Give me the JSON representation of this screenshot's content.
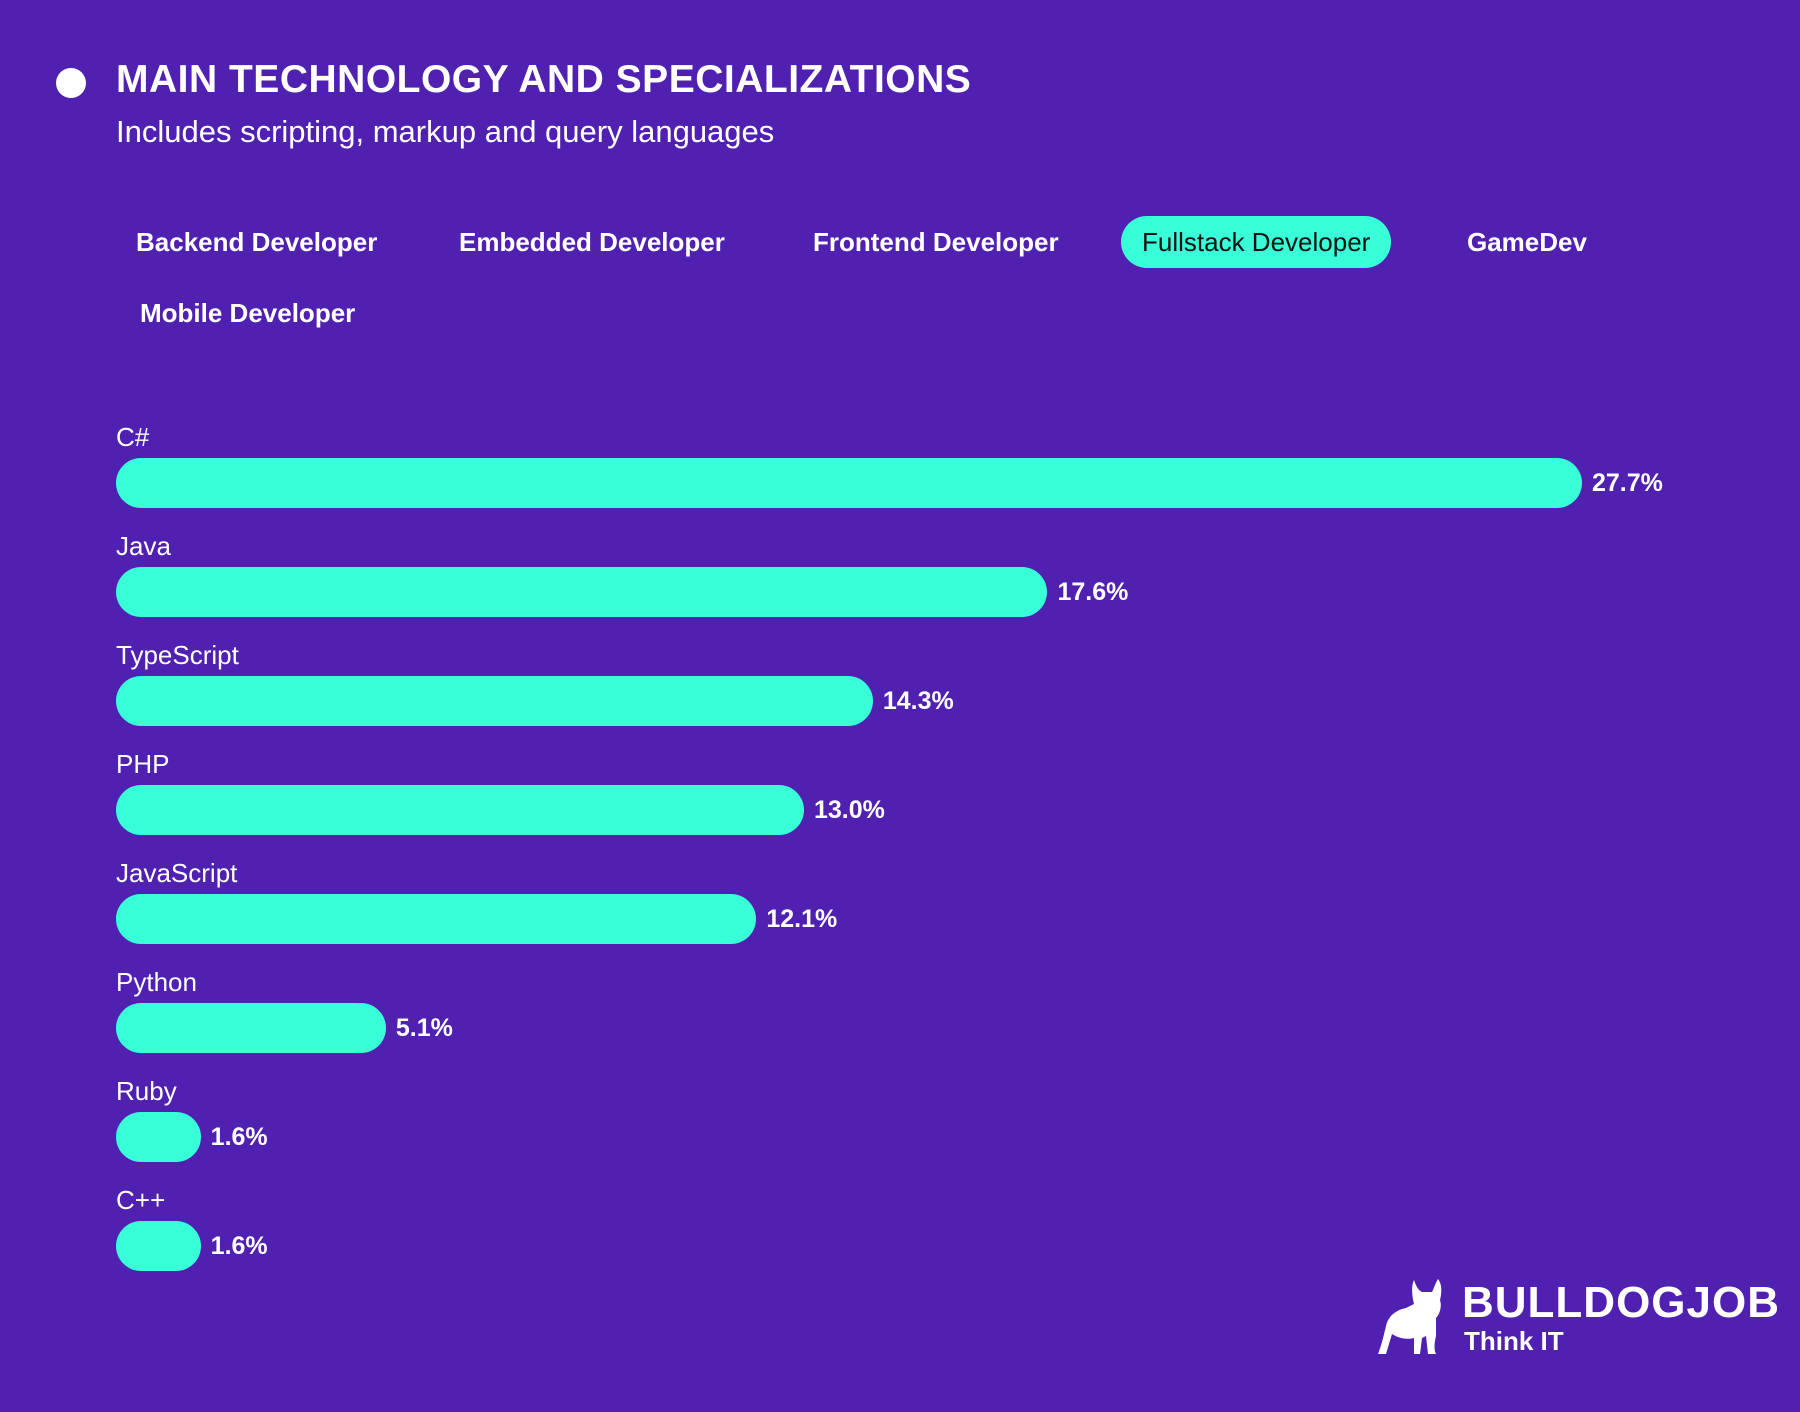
{
  "header": {
    "title": "MAIN TECHNOLOGY AND SPECIALIZATIONS",
    "subtitle": "Includes scripting, markup and query languages"
  },
  "tabs": [
    {
      "label": "Backend Developer",
      "active": false
    },
    {
      "label": "Embedded Developer",
      "active": false
    },
    {
      "label": "Frontend Developer",
      "active": false
    },
    {
      "label": "Fullstack Developer",
      "active": true
    },
    {
      "label": "GameDev",
      "active": false
    },
    {
      "label": "Mobile Developer",
      "active": false
    }
  ],
  "colors": {
    "background": "#5021b0",
    "bar": "#38ffd8"
  },
  "chart_data": {
    "type": "bar",
    "orientation": "horizontal",
    "title": "MAIN TECHNOLOGY AND SPECIALIZATIONS",
    "subtitle": "Includes scripting, markup and query languages",
    "series_name": "Fullstack Developer",
    "categories": [
      "C#",
      "Java",
      "TypeScript",
      "PHP",
      "JavaScript",
      "Python",
      "Ruby",
      "C++"
    ],
    "values": [
      27.7,
      17.6,
      14.3,
      13.0,
      12.1,
      5.1,
      1.6,
      1.6
    ],
    "value_labels": [
      "27.7%",
      "17.6%",
      "14.3%",
      "13.0%",
      "12.1%",
      "5.1%",
      "1.6%",
      "1.6%"
    ],
    "unit": "%",
    "grid": false
  },
  "logo": {
    "brand": "BULLDOGJOB",
    "tagline": "Think IT"
  }
}
